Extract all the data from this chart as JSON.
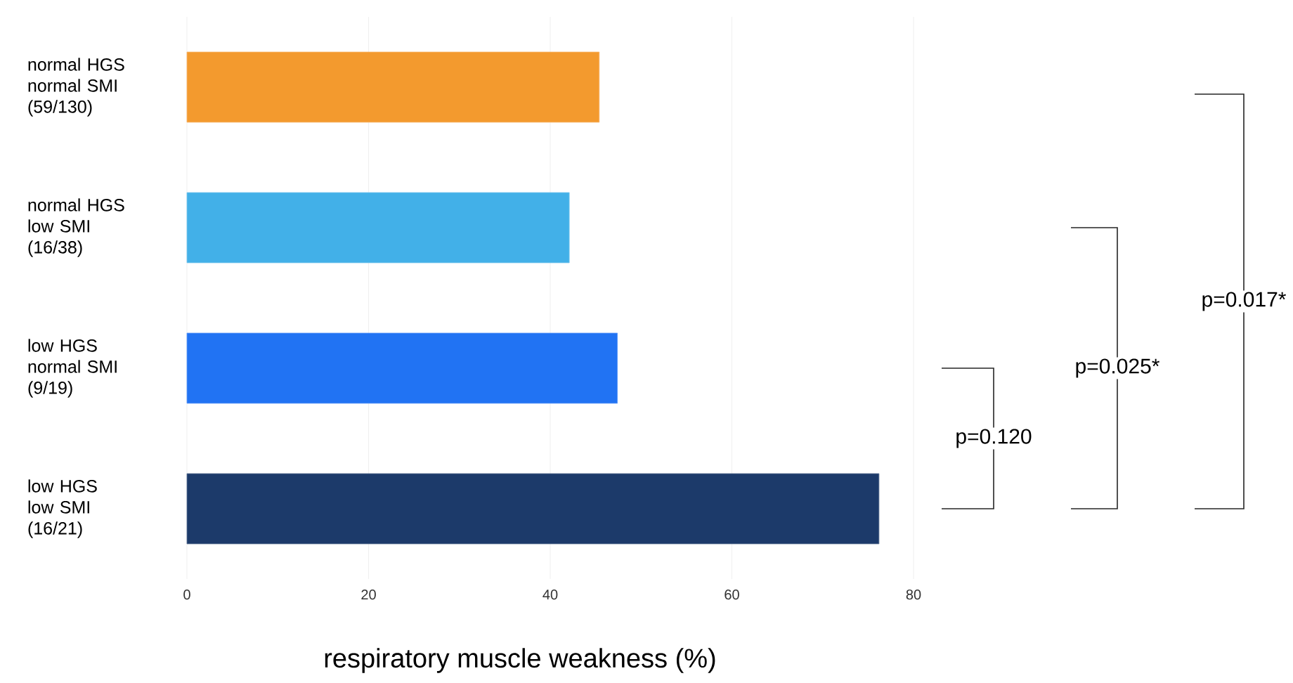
{
  "chart_data": {
    "type": "bar",
    "orientation": "horizontal",
    "categories": [
      "normal HGS normal SMI (59/130)",
      "normal HGS low SMI (16/38)",
      "low HGS normal SMI (9/19)",
      "low HGS low SMI (16/21)"
    ],
    "values": [
      45.4,
      42.1,
      47.4,
      76.2
    ],
    "colors": [
      "#f39a2e",
      "#42b0e8",
      "#2173f3",
      "#1c3a6a"
    ],
    "xlabel": "respiratory muscle weakness (%)",
    "xlim": [
      0,
      80
    ],
    "xticks": [
      0,
      20,
      40,
      60,
      80
    ],
    "grid": "x",
    "annotations": [
      "p=0.120",
      "p=0.025*",
      "p=0.017*"
    ]
  }
}
